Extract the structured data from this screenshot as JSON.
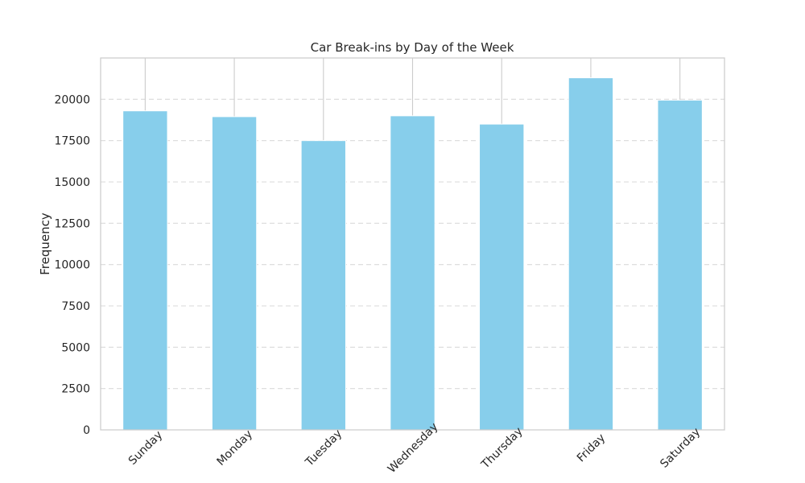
{
  "chart_data": {
    "type": "bar",
    "title": "Car Break-ins by Day of the Week",
    "xlabel": "",
    "ylabel": "Frequency",
    "categories": [
      "Sunday",
      "Monday",
      "Tuesday",
      "Wednesday",
      "Thursday",
      "Friday",
      "Saturday"
    ],
    "values": [
      19300,
      18950,
      17500,
      19000,
      18500,
      21300,
      19950
    ],
    "ylim": [
      0,
      22500
    ],
    "yticks": [
      0,
      2500,
      5000,
      7500,
      10000,
      12500,
      15000,
      17500,
      20000
    ],
    "grid": "y-dashed",
    "bar_color": "#87CEEB",
    "grid_color": "#d9d9d9",
    "axis_color": "#cccccc"
  }
}
